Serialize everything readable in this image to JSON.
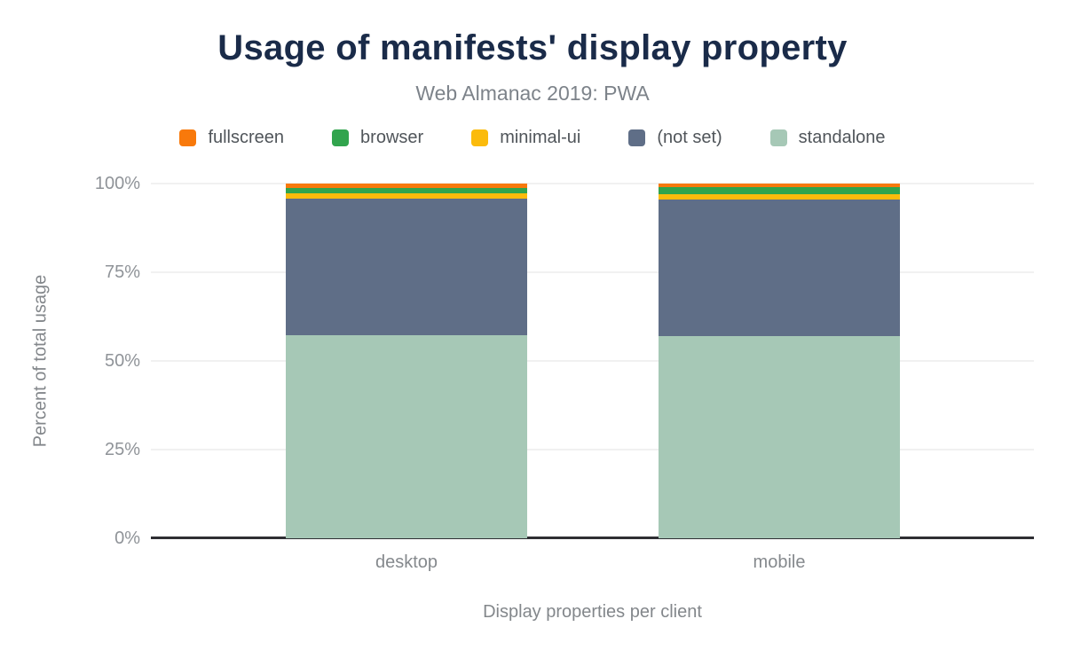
{
  "header": {
    "title": "Usage of manifests' display property",
    "subtitle": "Web Almanac 2019: PWA"
  },
  "legend": {
    "items": [
      {
        "label": "fullscreen",
        "color": "#f8790b"
      },
      {
        "label": "browser",
        "color": "#31a44d"
      },
      {
        "label": "minimal-ui",
        "color": "#fbbb0c"
      },
      {
        "label": "(not set)",
        "color": "#5f6e87"
      },
      {
        "label": "standalone",
        "color": "#a6c8b6"
      }
    ]
  },
  "chart_data": {
    "type": "bar",
    "stacked": true,
    "unit": "%",
    "title": "Usage of manifests' display property",
    "subtitle": "Web Almanac 2019: PWA",
    "xlabel": "Display properties per client",
    "ylabel": "Percent of total usage",
    "categories": [
      "desktop",
      "mobile"
    ],
    "series": [
      {
        "name": "standalone",
        "color": "#a6c8b6",
        "values": [
          57.2,
          57.1
        ]
      },
      {
        "name": "(not set)",
        "color": "#5f6e87",
        "values": [
          38.6,
          38.5
        ]
      },
      {
        "name": "minimal-ui",
        "color": "#fbbb0c",
        "values": [
          1.5,
          1.5
        ]
      },
      {
        "name": "browser",
        "color": "#31a44d",
        "values": [
          1.5,
          1.8
        ]
      },
      {
        "name": "fullscreen",
        "color": "#f8790b",
        "values": [
          1.2,
          1.1
        ]
      }
    ],
    "ylim": [
      0,
      100
    ],
    "yticks": [
      {
        "label": "0%",
        "value": 0
      },
      {
        "label": "25%",
        "value": 25
      },
      {
        "label": "50%",
        "value": 50
      },
      {
        "label": "75%",
        "value": 75
      },
      {
        "label": "100%",
        "value": 100
      }
    ],
    "grid": true,
    "legend_position": "top"
  }
}
